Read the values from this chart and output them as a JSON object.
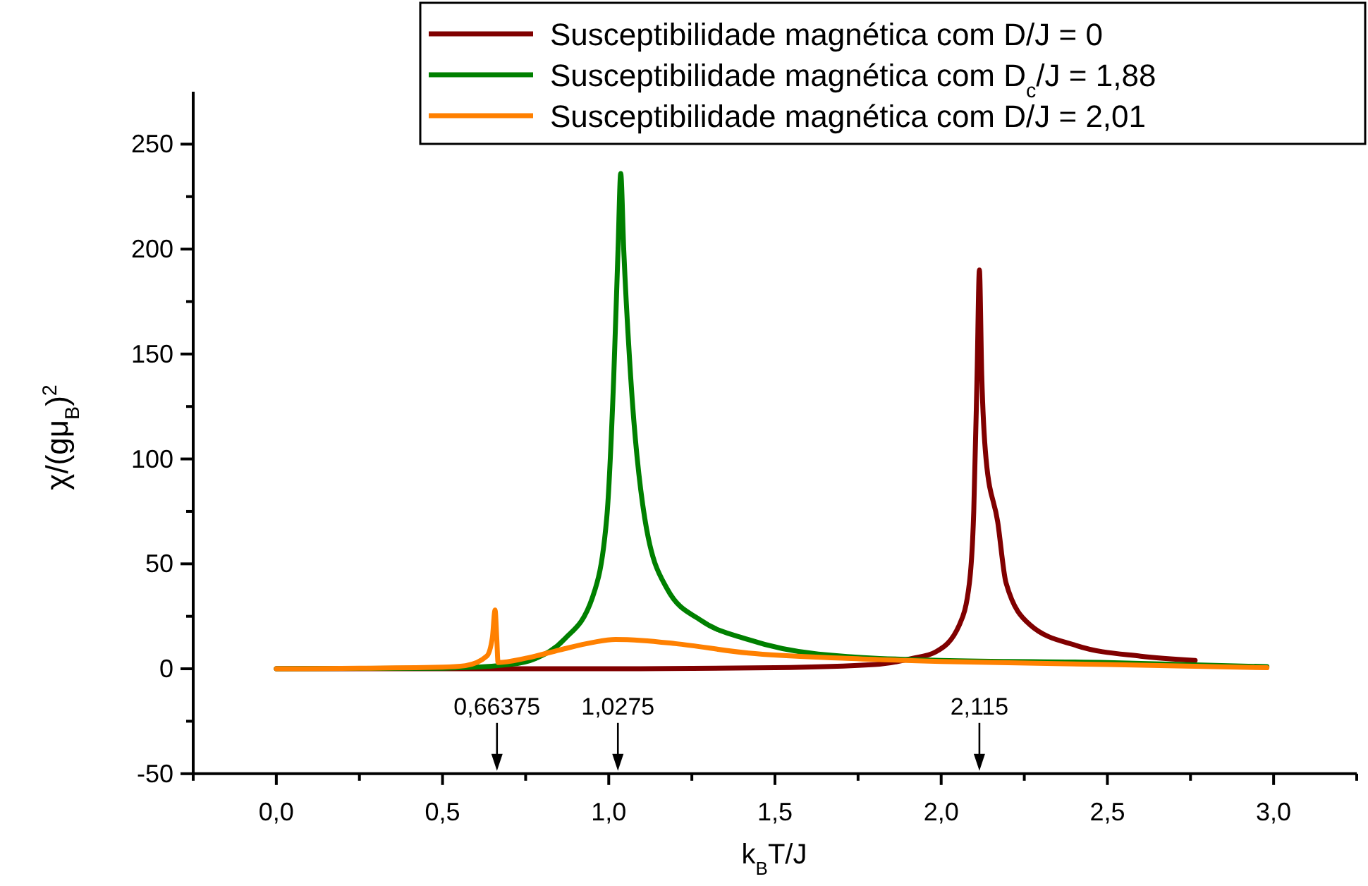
{
  "chart_data": {
    "type": "line",
    "xlabel": "k$_{B}$T/J",
    "ylabel": "χ/(gμ$_{B}$)$^{2}$",
    "xlim": [
      -0.25,
      3.25
    ],
    "xticks": [
      {
        "value": -0.25,
        "label": null
      },
      {
        "value": 0,
        "label": "0,0"
      },
      {
        "value": 0.25,
        "label": null
      },
      {
        "value": 0.5,
        "label": "0,5"
      },
      {
        "value": 0.75,
        "label": null
      },
      {
        "value": 1,
        "label": "1,0"
      },
      {
        "value": 1.25,
        "label": null
      },
      {
        "value": 1.5,
        "label": "1,5"
      },
      {
        "value": 1.75,
        "label": null
      },
      {
        "value": 2,
        "label": "2,0"
      },
      {
        "value": 2.25,
        "label": null
      },
      {
        "value": 2.5,
        "label": "2,5"
      },
      {
        "value": 2.75,
        "label": null
      },
      {
        "value": 3,
        "label": "3,0"
      },
      {
        "value": 3.25,
        "label": null
      }
    ],
    "ylim": [
      -50,
      275
    ],
    "yticks": [
      -50,
      {
        "value": -25,
        "label": null
      },
      0,
      {
        "value": 25,
        "label": null
      },
      50,
      {
        "value": 75,
        "label": null
      },
      100,
      {
        "value": 125,
        "label": null
      },
      150,
      {
        "value": 175,
        "label": null
      },
      200,
      {
        "value": 225,
        "label": null
      },
      250
    ],
    "legend": "top right",
    "grid": false,
    "marker": "none",
    "line_style": "solid",
    "annotations": [
      "0,66375",
      "1,0275",
      "2,115"
    ],
    "series": [
      {
        "name": "Susceptibilidade magnética com D/J = 0",
        "color": "#800000",
        "x": [
          0,
          0.5,
          1,
          1.5,
          1.8,
          1.915,
          1.983,
          2.055,
          2.085,
          2.098,
          2.108,
          2.115,
          2.122,
          2.135,
          2.17,
          2.195,
          2.267,
          2.408,
          2.6,
          2.764
        ],
        "values": [
          0,
          0,
          0,
          0.5,
          2,
          5,
          8,
          21,
          41,
          75,
          140,
          190,
          140,
          100,
          70,
          41,
          21,
          11,
          6,
          4
        ]
      },
      {
        "name": "Susceptibilidade magnética com D$_{c}$/J = 1,88",
        "color": "#008000",
        "x": [
          0,
          0.5,
          0.7,
          0.781,
          0.866,
          0.951,
          0.994,
          1.015,
          1.028,
          1.036,
          1.045,
          1.066,
          1.108,
          1.176,
          1.278,
          1.418,
          1.63,
          2,
          2.5,
          2.98
        ],
        "values": [
          0,
          0.3,
          2,
          5,
          14,
          34,
          72,
          139,
          200,
          236,
          200,
          139,
          72,
          38,
          23,
          14,
          7,
          4,
          3,
          1
        ]
      },
      {
        "name": "Susceptibilidade magnética com D/J = 2,01",
        "color": "#ff8000",
        "x": [
          0,
          0.5,
          0.569,
          0.633,
          0.65,
          0.658,
          0.663,
          0.667,
          0.75,
          0.853,
          0.95,
          1.02,
          1.1,
          1.2,
          1.42,
          1.715,
          2,
          2.5,
          2.98
        ],
        "values": [
          0,
          0.8,
          1.5,
          6,
          15,
          28,
          15,
          3,
          5,
          9,
          12.5,
          14,
          13.5,
          12,
          7.5,
          5,
          3.5,
          2,
          0.5
        ]
      }
    ]
  }
}
